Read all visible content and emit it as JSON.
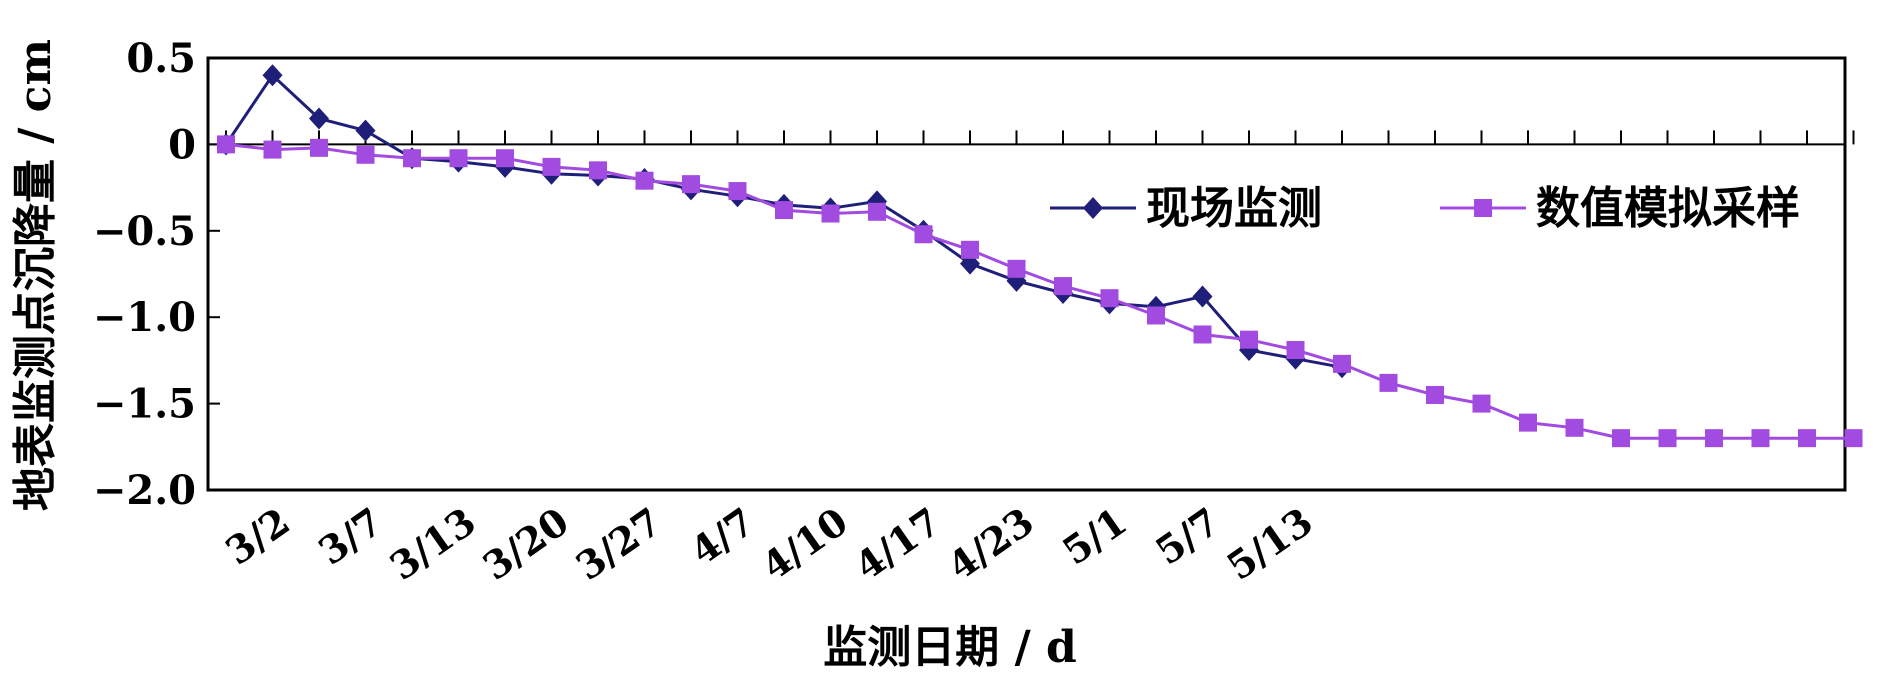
{
  "chart_data": {
    "type": "line",
    "xlabel": "监测日期 / d",
    "ylabel": "地表监测点沉降量 / cm",
    "ylim": [
      -2.0,
      0.5
    ],
    "yticks": [
      0.5,
      0,
      -0.5,
      -1.0,
      -1.5,
      -2.0
    ],
    "ytick_labels": [
      "0.5",
      "0",
      "−0.5",
      "−1.0",
      "−1.5",
      "−2.0"
    ],
    "x_count": 36,
    "xtick_labels": [
      {
        "index": 1,
        "label": "3/2"
      },
      {
        "index": 3,
        "label": "3/7"
      },
      {
        "index": 5,
        "label": "3/13"
      },
      {
        "index": 7,
        "label": "3/20"
      },
      {
        "index": 9,
        "label": "3/27"
      },
      {
        "index": 11,
        "label": "4/7"
      },
      {
        "index": 13,
        "label": "4/10"
      },
      {
        "index": 15,
        "label": "4/17"
      },
      {
        "index": 17,
        "label": "4/23"
      },
      {
        "index": 19,
        "label": "5/1"
      },
      {
        "index": 21,
        "label": "5/7"
      },
      {
        "index": 23,
        "label": "5/13"
      }
    ],
    "legend_position": "right",
    "grid": false,
    "series": [
      {
        "name": "现场监测",
        "color": "#1F1F7A",
        "marker": "diamond",
        "values": [
          0.0,
          0.4,
          0.15,
          0.08,
          -0.08,
          -0.1,
          -0.13,
          -0.17,
          -0.18,
          -0.2,
          -0.26,
          -0.3,
          -0.35,
          -0.37,
          -0.33,
          -0.5,
          -0.69,
          -0.79,
          -0.86,
          -0.92,
          -0.94,
          -0.88,
          -1.19,
          -1.24,
          -1.29
        ]
      },
      {
        "name": "数值模拟采样",
        "color": "#A24BE0",
        "marker": "square",
        "values": [
          0.0,
          -0.03,
          -0.02,
          -0.06,
          -0.08,
          -0.08,
          -0.08,
          -0.13,
          -0.15,
          -0.21,
          -0.23,
          -0.27,
          -0.38,
          -0.4,
          -0.39,
          -0.52,
          -0.61,
          -0.72,
          -0.82,
          -0.89,
          -0.99,
          -1.1,
          -1.13,
          -1.19,
          -1.27,
          -1.38,
          -1.45,
          -1.5,
          -1.61,
          -1.64,
          -1.7,
          -1.7,
          -1.7,
          -1.7,
          -1.7,
          -1.7
        ]
      }
    ]
  }
}
